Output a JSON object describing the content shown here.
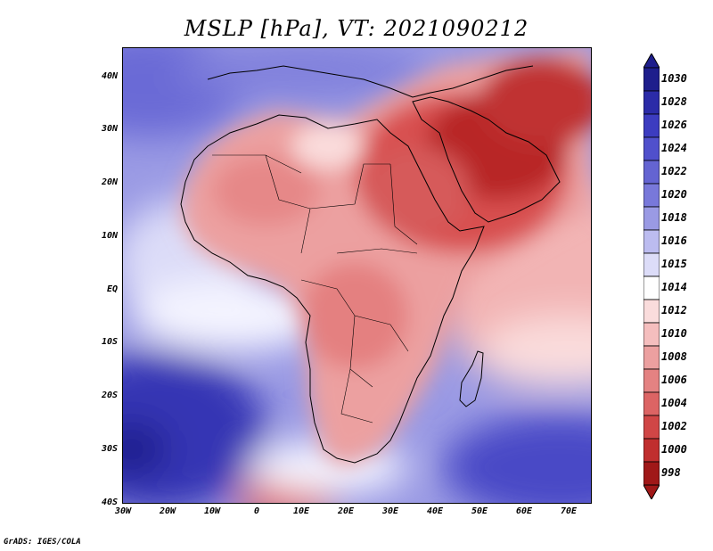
{
  "title": "MSLP [hPa], VT: 2021090212",
  "credit": "GrADS: IGES/COLA",
  "lat_labels": [
    "40N",
    "30N",
    "20N",
    "10N",
    "EQ",
    "10S",
    "20S",
    "30S",
    "40S"
  ],
  "lon_labels": [
    "30W",
    "20W",
    "10W",
    "0",
    "10E",
    "20E",
    "30E",
    "40E",
    "50E",
    "60E",
    "70E"
  ],
  "colorbar": {
    "levels": [
      "1030",
      "1028",
      "1026",
      "1024",
      "1022",
      "1020",
      "1018",
      "1016",
      "1015",
      "1014",
      "1012",
      "1010",
      "1008",
      "1006",
      "1004",
      "1002",
      "1000",
      "998"
    ],
    "colors": [
      "#1e1e8c",
      "#2b2ba8",
      "#3c3cc0",
      "#5050cc",
      "#6464d2",
      "#7878da",
      "#9a9ae4",
      "#bcbcf0",
      "#dcdcf8",
      "#ffffff",
      "#fadcdc",
      "#f5bebe",
      "#eca0a0",
      "#e48282",
      "#dc6464",
      "#d04646",
      "#c02e2e",
      "#a01818"
    ]
  },
  "map": {
    "region": "Africa and Middle East",
    "extent": {
      "lon": [
        "30W",
        "75E"
      ],
      "lat": [
        "40S",
        "45N"
      ]
    },
    "palette": {
      "ocean_high": "#6a6ad6",
      "ocean_mid": "#a8a8ec",
      "neutral": "#f4f4ff",
      "land_low": "#eca0a0",
      "land_lower": "#dc6464",
      "arabia_low": "#b82828"
    }
  }
}
